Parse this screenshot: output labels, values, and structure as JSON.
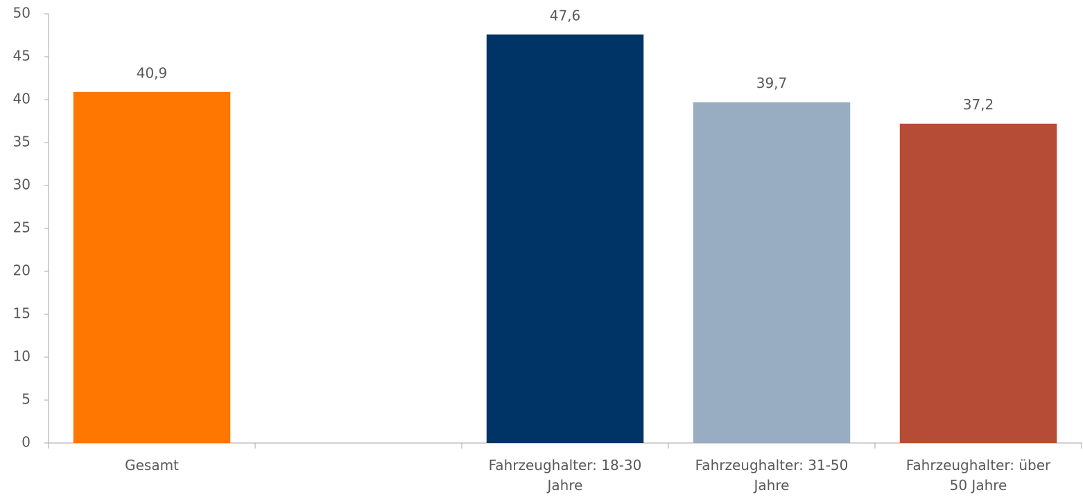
{
  "chart_data": {
    "type": "bar",
    "categories": [
      "Gesamt",
      null,
      "Fahrzeughalter: 18-30 Jahre",
      "Fahrzeughalter: 31-50 Jahre",
      "Fahrzeughalter: über 50 Jahre"
    ],
    "values": [
      40.9,
      null,
      47.6,
      39.7,
      37.2
    ],
    "value_labels": [
      "40,9",
      null,
      "47,6",
      "39,7",
      "37,2"
    ],
    "colors": [
      "#ff7600",
      null,
      "#003366",
      "#99adc2",
      "#b64c35"
    ],
    "ylim": [
      0,
      50
    ],
    "yticks": [
      0,
      5,
      10,
      15,
      20,
      25,
      30,
      35,
      40,
      45,
      50
    ],
    "grid": false
  }
}
